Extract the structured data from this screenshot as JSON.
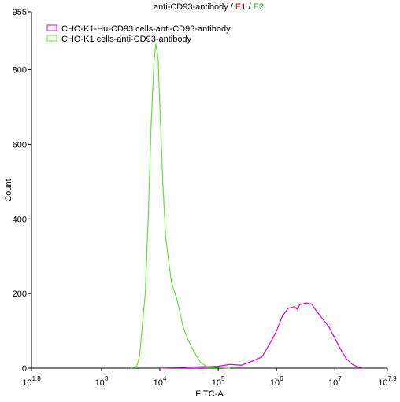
{
  "chart_data": {
    "type": "line",
    "title": {
      "name": "anti-CD93-antibody",
      "sep": "/",
      "e1": "E1",
      "e2": "E2"
    },
    "xlabel": "FITC-A",
    "ylabel": "Count",
    "xscale": "log",
    "xlim": [
      63.0957,
      79432823
    ],
    "xticks": [
      {
        "value": 63.0957,
        "label": "10",
        "exponent": "1.8"
      },
      {
        "value": 1000,
        "label": "10",
        "exponent": "3"
      },
      {
        "value": 10000,
        "label": "10",
        "exponent": "4"
      },
      {
        "value": 100000,
        "label": "10",
        "exponent": "5"
      },
      {
        "value": 1000000,
        "label": "10",
        "exponent": "6"
      },
      {
        "value": 10000000,
        "label": "10",
        "exponent": "7"
      },
      {
        "value": 79432823,
        "label": "10",
        "exponent": "7.9"
      }
    ],
    "ylim": [
      0,
      955
    ],
    "yticks": [
      0,
      200,
      400,
      600,
      800,
      955
    ],
    "legend": "top-left",
    "series": [
      {
        "name": "CHO-K1-Hu-CD93 cells-anti-CD93-antibody",
        "color": "#e000e0",
        "x": [
          10000,
          31600,
          100000,
          158000,
          251000,
          398000,
          562000,
          794000,
          1000000,
          1260000,
          1580000,
          2000000,
          2240000,
          2510000,
          3160000,
          3980000,
          5010000,
          6310000,
          7940000,
          10000000,
          12600000,
          15800000,
          20000000,
          25100000,
          31600000
        ],
        "values": [
          0,
          3,
          5,
          10,
          8,
          20,
          30,
          70,
          100,
          140,
          160,
          165,
          158,
          170,
          175,
          172,
          150,
          130,
          110,
          80,
          50,
          25,
          10,
          3,
          0
        ]
      },
      {
        "name": "CHO-K1 cells-anti-CD93-antibody",
        "color": "#66e03a",
        "x": [
          3160,
          3980,
          4470,
          5620,
          6310,
          7080,
          7940,
          8510,
          9330,
          10000,
          11200,
          12600,
          15800,
          20000,
          25100,
          31600,
          39800,
          50100,
          63100,
          100000,
          158000
        ],
        "values": [
          0,
          5,
          30,
          200,
          400,
          650,
          820,
          870,
          830,
          700,
          500,
          350,
          230,
          180,
          110,
          70,
          40,
          15,
          5,
          2,
          0
        ]
      }
    ]
  }
}
